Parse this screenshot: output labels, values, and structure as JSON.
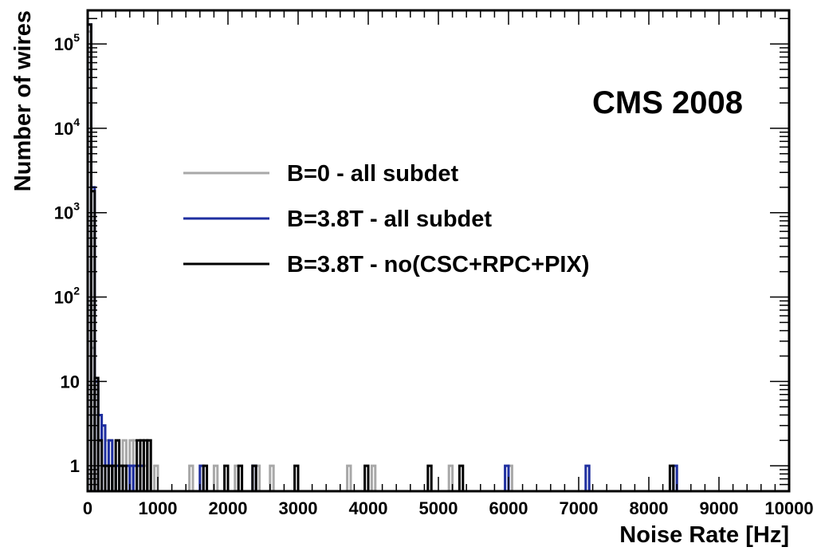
{
  "chart_data": {
    "type": "histogram",
    "xlabel": "Noise Rate [Hz]",
    "ylabel": "Number of wires",
    "annotation": "CMS 2008",
    "xlim": [
      0,
      10000
    ],
    "ylim": [
      0.5,
      250000
    ],
    "yscale": "log",
    "bin_width": 50,
    "x_ticks": [
      0,
      1000,
      2000,
      3000,
      4000,
      5000,
      6000,
      7000,
      8000,
      9000,
      10000
    ],
    "x_tick_labels": [
      "0",
      "1000",
      "2000",
      "3000",
      "4000",
      "5000",
      "6000",
      "7000",
      "8000",
      "9000",
      "10000"
    ],
    "y_ticks": [
      {
        "value": 1,
        "label": "1",
        "sup": ""
      },
      {
        "value": 10,
        "label": "10",
        "sup": ""
      },
      {
        "value": 100,
        "label": "10",
        "sup": "2"
      },
      {
        "value": 1000,
        "label": "10",
        "sup": "3"
      },
      {
        "value": 10000,
        "label": "10",
        "sup": "4"
      },
      {
        "value": 100000,
        "label": "10",
        "sup": "5"
      }
    ],
    "legend_position": "center-left",
    "series": [
      {
        "name": "B=0 - all subdet",
        "color": "#a8a8a8",
        "bins": [
          [
            0,
            140000
          ],
          [
            50,
            25
          ],
          [
            100,
            8
          ],
          [
            150,
            4
          ],
          [
            200,
            3
          ],
          [
            250,
            2
          ],
          [
            300,
            2
          ],
          [
            350,
            1
          ],
          [
            400,
            2
          ],
          [
            450,
            1
          ],
          [
            500,
            2
          ],
          [
            550,
            1
          ],
          [
            600,
            2
          ],
          [
            650,
            2
          ],
          [
            700,
            1
          ],
          [
            750,
            1
          ],
          [
            800,
            1
          ],
          [
            850,
            2
          ],
          [
            950,
            1
          ],
          [
            1450,
            1
          ],
          [
            1600,
            1
          ],
          [
            1800,
            1
          ],
          [
            2100,
            1
          ],
          [
            2400,
            1
          ],
          [
            2600,
            1
          ],
          [
            3700,
            1
          ],
          [
            4050,
            1
          ],
          [
            5150,
            1
          ],
          [
            6000,
            1
          ],
          [
            8350,
            1
          ]
        ]
      },
      {
        "name": "B=3.8T - all subdet",
        "color": "#1f2fa0",
        "bins": [
          [
            0,
            170000
          ],
          [
            50,
            2000
          ],
          [
            100,
            10
          ],
          [
            150,
            4
          ],
          [
            200,
            3
          ],
          [
            250,
            1
          ],
          [
            300,
            2
          ],
          [
            400,
            1
          ],
          [
            550,
            1
          ],
          [
            600,
            1
          ],
          [
            650,
            1
          ],
          [
            700,
            1
          ],
          [
            750,
            1
          ],
          [
            1600,
            1
          ],
          [
            2350,
            1
          ],
          [
            5950,
            1
          ],
          [
            7100,
            1
          ],
          [
            8350,
            1
          ]
        ]
      },
      {
        "name": "B=3.8T - no(CSC+RPC+PIX)",
        "color": "#000000",
        "bins": [
          [
            0,
            170000
          ],
          [
            50,
            1800
          ],
          [
            100,
            11
          ],
          [
            150,
            2
          ],
          [
            200,
            1
          ],
          [
            250,
            1
          ],
          [
            300,
            1
          ],
          [
            350,
            1
          ],
          [
            400,
            2
          ],
          [
            450,
            1
          ],
          [
            500,
            1
          ],
          [
            700,
            2
          ],
          [
            750,
            2
          ],
          [
            800,
            2
          ],
          [
            850,
            2
          ],
          [
            1650,
            1
          ],
          [
            1950,
            1
          ],
          [
            2150,
            1
          ],
          [
            2350,
            1
          ],
          [
            2950,
            1
          ],
          [
            3950,
            1
          ],
          [
            4850,
            1
          ],
          [
            5300,
            1
          ],
          [
            8300,
            1
          ]
        ]
      }
    ]
  }
}
